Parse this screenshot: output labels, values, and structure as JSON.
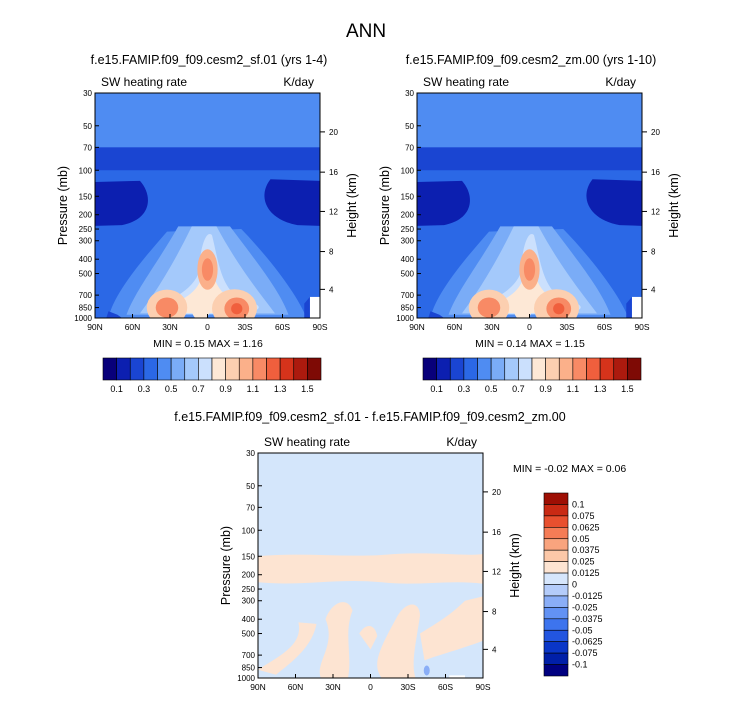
{
  "figure": {
    "title": "ANN"
  },
  "colors": {
    "colormap": [
      "#08007a",
      "#0c1fb0",
      "#1a45d2",
      "#2b68e6",
      "#4f8cf2",
      "#7aacf7",
      "#a4c9fb",
      "#cbe0fd",
      "#fde8d6",
      "#fccfb0",
      "#fbb08a",
      "#f88a65",
      "#f05f3d",
      "#d6331b",
      "#ac1a0e",
      "#7e0a05"
    ],
    "diff_colormap": [
      "#000080",
      "#001fa8",
      "#0a36c8",
      "#2255e0",
      "#3d74ee",
      "#6292f4",
      "#8aaef7",
      "#b4ccfa",
      "#d6e6fc",
      "#fde4d2",
      "#fcc8a8",
      "#f9a47e",
      "#f57c56",
      "#e8502f",
      "#c92a14",
      "#9e0f04"
    ],
    "diff_background": "#d4e6fb",
    "diff_positive": "#fde4d2"
  },
  "chart_data": [
    {
      "type": "heatmap",
      "title": "f.e15.FAMIP.f09_f09.cesm2_sf.01 (yrs 1-4)",
      "left_label": "SW heating rate",
      "right_label": "K/day",
      "ylabel": "Pressure (mb)",
      "ylabel_right": "Height (km)",
      "x_ticks": [
        "90N",
        "60N",
        "30N",
        "0",
        "30S",
        "60S",
        "90S"
      ],
      "y_ticks": [
        "30",
        "50",
        "70",
        "100",
        "150",
        "200",
        "250",
        "300",
        "400",
        "500",
        "700",
        "850",
        "1000"
      ],
      "height_ticks": [
        "20",
        "16",
        "12",
        "8",
        "4"
      ],
      "min_max_text": "MIN =  0.15  MAX =  1.16",
      "min": 0.15,
      "max": 1.16,
      "colorbar_labels": [
        "0.1",
        "0.3",
        "0.5",
        "0.7",
        "0.9",
        "1.1",
        "1.3",
        "1.5"
      ],
      "colorbar_levels": [
        0.1,
        0.2,
        0.3,
        0.4,
        0.5,
        0.6,
        0.7,
        0.8,
        0.9,
        1.0,
        1.1,
        1.2,
        1.3,
        1.4,
        1.5
      ]
    },
    {
      "type": "heatmap",
      "title": "f.e15.FAMIP.f09_f09.cesm2_zm.00 (yrs 1-10)",
      "left_label": "SW heating rate",
      "right_label": "K/day",
      "ylabel": "Pressure (mb)",
      "ylabel_right": "Height (km)",
      "x_ticks": [
        "90N",
        "60N",
        "30N",
        "0",
        "30S",
        "60S",
        "90S"
      ],
      "y_ticks": [
        "30",
        "50",
        "70",
        "100",
        "150",
        "200",
        "250",
        "300",
        "400",
        "500",
        "700",
        "850",
        "1000"
      ],
      "height_ticks": [
        "20",
        "16",
        "12",
        "8",
        "4"
      ],
      "min_max_text": "MIN =  0.14  MAX =  1.15",
      "min": 0.14,
      "max": 1.15,
      "colorbar_labels": [
        "0.1",
        "0.3",
        "0.5",
        "0.7",
        "0.9",
        "1.1",
        "1.3",
        "1.5"
      ],
      "colorbar_levels": [
        0.1,
        0.2,
        0.3,
        0.4,
        0.5,
        0.6,
        0.7,
        0.8,
        0.9,
        1.0,
        1.1,
        1.2,
        1.3,
        1.4,
        1.5
      ]
    },
    {
      "type": "heatmap",
      "title": "f.e15.FAMIP.f09_f09.cesm2_sf.01 - f.e15.FAMIP.f09_f09.cesm2_zm.00",
      "left_label": "SW heating rate",
      "right_label": "K/day",
      "ylabel": "Pressure (mb)",
      "ylabel_right": "Height (km)",
      "x_ticks": [
        "90N",
        "60N",
        "30N",
        "0",
        "30S",
        "60S",
        "90S"
      ],
      "y_ticks": [
        "30",
        "50",
        "70",
        "100",
        "150",
        "200",
        "250",
        "300",
        "400",
        "500",
        "700",
        "850",
        "1000"
      ],
      "height_ticks": [
        "20",
        "16",
        "12",
        "8",
        "4"
      ],
      "min_max_text": "MIN = -0.02  MAX =  0.06",
      "min": -0.02,
      "max": 0.06,
      "colorbar_labels": [
        "0.1",
        "0.075",
        "0.0625",
        "0.05",
        "0.0375",
        "0.025",
        "0.0125",
        "0",
        "-0.0125",
        "-0.025",
        "-0.0375",
        "-0.05",
        "-0.0625",
        "-0.075",
        "-0.1"
      ]
    }
  ]
}
